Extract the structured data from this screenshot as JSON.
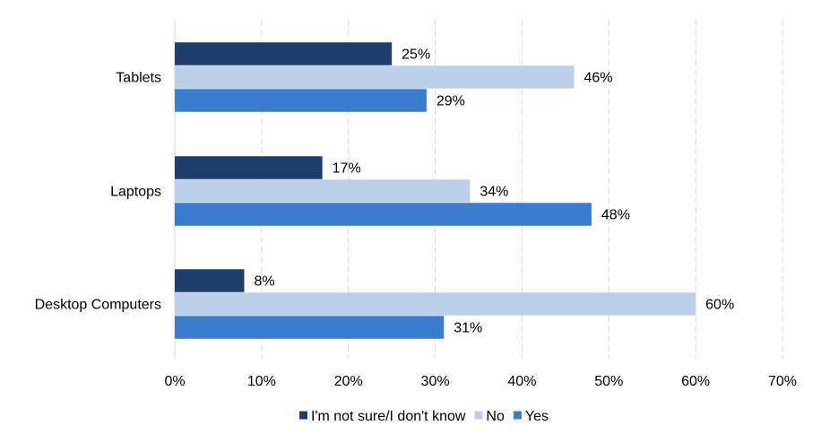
{
  "chart_data": {
    "type": "bar",
    "orientation": "horizontal",
    "categories": [
      "Tablets",
      "Laptops",
      "Desktop Computers"
    ],
    "series": [
      {
        "name": "I'm not sure/I don't know",
        "values": [
          25,
          17,
          8
        ],
        "color": "#1f3d6b"
      },
      {
        "name": "No",
        "values": [
          46,
          34,
          60
        ],
        "color": "#bdd0e9"
      },
      {
        "name": "Yes",
        "values": [
          29,
          48,
          31
        ],
        "color": "#3a7dcf"
      }
    ],
    "value_suffix": "%",
    "xlim": [
      0,
      70
    ],
    "xticks": [
      "0%",
      "10%",
      "20%",
      "30%",
      "40%",
      "50%",
      "60%",
      "70%"
    ],
    "grid": true,
    "legend_position": "bottom"
  }
}
